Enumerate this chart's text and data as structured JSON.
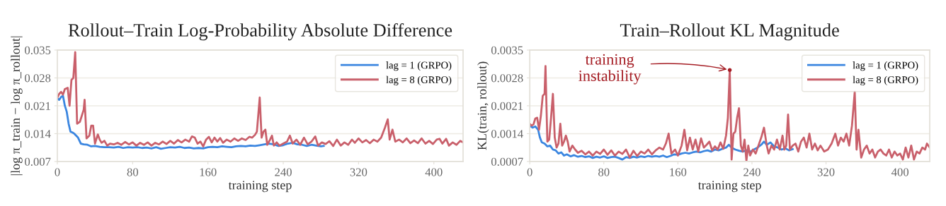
{
  "chart_data": [
    {
      "type": "line",
      "title": "Rollout–Train Log-Probability Absolute Difference",
      "xlabel": "training step",
      "ylabel": "|log π_train − log π_rollout|",
      "xlim": [
        0,
        431
      ],
      "xticks": [
        0,
        80,
        160,
        240,
        320,
        400
      ],
      "ylim": [
        0.007,
        0.035
      ],
      "yticks": [
        0.007,
        0.014,
        0.021,
        0.028,
        0.035
      ],
      "grid": "y",
      "legend": "top right",
      "series": [
        {
          "name": "lag = 1 (GRPO)",
          "color": "#3b86e0",
          "x": [
            0,
            2,
            4,
            6,
            8,
            10,
            12,
            14,
            16,
            18,
            20,
            22,
            25,
            28,
            32,
            36,
            40,
            45,
            50,
            55,
            60,
            65,
            70,
            75,
            80,
            85,
            90,
            95,
            100,
            105,
            110,
            115,
            120,
            125,
            130,
            135,
            140,
            145,
            150,
            155,
            160,
            165,
            170,
            175,
            180,
            185,
            190,
            195,
            200,
            205,
            210,
            215,
            220,
            225,
            230,
            235,
            240,
            245,
            250,
            255,
            260,
            265,
            270,
            275,
            280,
            283
          ],
          "values": [
            0.0228,
            0.0225,
            0.0232,
            0.0235,
            0.021,
            0.0195,
            0.0165,
            0.0145,
            0.0143,
            0.014,
            0.0135,
            0.013,
            0.0115,
            0.0113,
            0.0112,
            0.0108,
            0.0109,
            0.0107,
            0.0106,
            0.0106,
            0.0105,
            0.0107,
            0.0104,
            0.0106,
            0.0105,
            0.0106,
            0.0104,
            0.0105,
            0.0103,
            0.0106,
            0.0102,
            0.0104,
            0.0106,
            0.0105,
            0.0107,
            0.0104,
            0.0105,
            0.0103,
            0.0104,
            0.0103,
            0.0106,
            0.0107,
            0.0106,
            0.0108,
            0.0107,
            0.0106,
            0.0108,
            0.0109,
            0.0108,
            0.011,
            0.0109,
            0.0111,
            0.0113,
            0.0115,
            0.0113,
            0.0109,
            0.0111,
            0.0115,
            0.0117,
            0.0113,
            0.0112,
            0.0109,
            0.0112,
            0.011,
            0.0108,
            0.0109
          ]
        },
        {
          "name": "lag = 8 (GRPO)",
          "color": "#c9606b",
          "x": [
            0,
            2,
            4,
            6,
            8,
            11,
            13,
            15,
            17,
            19,
            21,
            24,
            28,
            29,
            31,
            34,
            36,
            38,
            40,
            43,
            45,
            47,
            50,
            53,
            56,
            60,
            64,
            68,
            72,
            76,
            80,
            84,
            88,
            92,
            96,
            100,
            104,
            108,
            112,
            116,
            120,
            124,
            128,
            132,
            136,
            140,
            143,
            146,
            149,
            152,
            155,
            158,
            161,
            164,
            167,
            170,
            173,
            176,
            180,
            184,
            188,
            192,
            196,
            200,
            204,
            207,
            210,
            212,
            215,
            217,
            219,
            221,
            223,
            226,
            228,
            230,
            233,
            236,
            240,
            244,
            247,
            250,
            254,
            258,
            262,
            266,
            270,
            274,
            277,
            281,
            285,
            289,
            293,
            297,
            301,
            305,
            309,
            313,
            316,
            320,
            324,
            328,
            332,
            336,
            340,
            344,
            348,
            351,
            353,
            356,
            359,
            363,
            367,
            371,
            375,
            379,
            383,
            387,
            391,
            395,
            399,
            403,
            406,
            409,
            413,
            416,
            420,
            424,
            428,
            431
          ],
          "values": [
            0.023,
            0.024,
            0.0245,
            0.0238,
            0.0252,
            0.0255,
            0.021,
            0.0275,
            0.028,
            0.0345,
            0.0165,
            0.017,
            0.02,
            0.0225,
            0.0128,
            0.0135,
            0.016,
            0.016,
            0.0115,
            0.0138,
            0.0125,
            0.0117,
            0.0122,
            0.011,
            0.0115,
            0.0113,
            0.0117,
            0.0112,
            0.0119,
            0.0113,
            0.0118,
            0.011,
            0.0117,
            0.0112,
            0.0118,
            0.011,
            0.0117,
            0.0113,
            0.012,
            0.0114,
            0.0122,
            0.0115,
            0.0124,
            0.0118,
            0.0125,
            0.012,
            0.0133,
            0.013,
            0.0115,
            0.012,
            0.0108,
            0.0125,
            0.0132,
            0.0118,
            0.013,
            0.012,
            0.0129,
            0.0117,
            0.0125,
            0.012,
            0.0128,
            0.0122,
            0.0128,
            0.0124,
            0.0132,
            0.013,
            0.0137,
            0.0145,
            0.0231,
            0.013,
            0.0145,
            0.015,
            0.0112,
            0.0125,
            0.0135,
            0.011,
            0.0118,
            0.011,
            0.0115,
            0.012,
            0.0135,
            0.0115,
            0.0125,
            0.0112,
            0.013,
            0.0113,
            0.012,
            0.0133,
            0.011,
            0.0118,
            0.0114,
            0.0121,
            0.0109,
            0.0125,
            0.011,
            0.0118,
            0.0112,
            0.0125,
            0.0117,
            0.0128,
            0.0118,
            0.0124,
            0.0116,
            0.0125,
            0.012,
            0.013,
            0.0155,
            0.0176,
            0.0125,
            0.015,
            0.012,
            0.0125,
            0.0118,
            0.0128,
            0.0116,
            0.0123,
            0.0116,
            0.0128,
            0.0115,
            0.0122,
            0.0114,
            0.0125,
            0.0127,
            0.0115,
            0.0127,
            0.011,
            0.0118,
            0.0112,
            0.0122,
            0.0118
          ]
        }
      ]
    },
    {
      "type": "line",
      "title": "Train–Rollout KL Magnitude",
      "xlabel": "training step",
      "ylabel": "KL(train, rollout)",
      "xlim": [
        0,
        432
      ],
      "xticks": [
        0,
        80,
        160,
        240,
        320,
        400
      ],
      "ylim": [
        0.0007,
        0.0035
      ],
      "yticks": [
        0.0007,
        0.0014,
        0.0021,
        0.0028,
        0.0035
      ],
      "grid": "y",
      "legend": "top right",
      "annotations": [
        {
          "text": "training\ninstability",
          "x": 216,
          "y": 0.003
        }
      ],
      "series": [
        {
          "name": "lag = 1 (GRPO)",
          "color": "#3b86e0",
          "x": [
            0,
            3,
            6,
            9,
            11,
            13,
            16,
            19,
            22,
            25,
            28,
            31,
            34,
            37,
            40,
            44,
            48,
            52,
            56,
            60,
            64,
            68,
            72,
            76,
            80,
            84,
            88,
            92,
            96,
            100,
            104,
            108,
            112,
            116,
            120,
            124,
            128,
            132,
            136,
            140,
            144,
            148,
            152,
            156,
            160,
            164,
            168,
            172,
            176,
            180,
            184,
            188,
            192,
            196,
            200,
            204,
            208,
            212,
            215,
            218,
            222,
            226,
            230,
            234,
            238,
            242,
            246,
            250,
            253,
            256,
            260,
            264,
            268,
            272,
            276,
            280,
            284
          ],
          "values": [
            0.0016,
            0.00155,
            0.00158,
            0.0015,
            0.0013,
            0.00118,
            0.00115,
            0.00108,
            0.0011,
            0.001,
            0.00098,
            0.0009,
            0.00093,
            0.00085,
            0.00088,
            0.00083,
            0.00086,
            0.00082,
            0.00084,
            0.00081,
            0.00083,
            0.00079,
            0.00082,
            0.0008,
            0.00083,
            0.00079,
            0.00081,
            0.00082,
            0.00079,
            0.00075,
            0.00081,
            0.00079,
            0.00082,
            0.0008,
            0.00083,
            0.00081,
            0.00084,
            0.00082,
            0.00084,
            0.00082,
            0.00085,
            0.00081,
            0.00084,
            0.00088,
            0.00087,
            0.0009,
            0.00092,
            0.0009,
            0.00093,
            0.00095,
            0.00093,
            0.00096,
            0.00098,
            0.00095,
            0.001,
            0.00098,
            0.00102,
            0.00105,
            0.00112,
            0.00105,
            0.001,
            0.00097,
            0.00095,
            0.00098,
            0.00094,
            0.001,
            0.00105,
            0.00112,
            0.0012,
            0.00112,
            0.00118,
            0.00108,
            0.00105,
            0.001,
            0.00103,
            0.00098,
            0.00101
          ]
        },
        {
          "name": "lag = 8 (GRPO)",
          "color": "#c9606b",
          "x": [
            0,
            2,
            4,
            6,
            8,
            10,
            12,
            14,
            16,
            17,
            19,
            21,
            23,
            25,
            27,
            29,
            31,
            33,
            35,
            37,
            39,
            41,
            43,
            46,
            49,
            52,
            56,
            60,
            64,
            68,
            72,
            76,
            80,
            84,
            88,
            92,
            96,
            100,
            104,
            108,
            112,
            116,
            120,
            124,
            128,
            132,
            136,
            140,
            144,
            147,
            150,
            153,
            157,
            160,
            164,
            167,
            170,
            173,
            176,
            179,
            182,
            185,
            188,
            191,
            194,
            197,
            200,
            203,
            206,
            209,
            212,
            214,
            216,
            218,
            220,
            222,
            224,
            226,
            228,
            230,
            232,
            234,
            236,
            238,
            241,
            244,
            247,
            250,
            253,
            256,
            258,
            261,
            264,
            267,
            270,
            273,
            275,
            277,
            279,
            281,
            284,
            287,
            290,
            293,
            296,
            299,
            302,
            305,
            308,
            311,
            314,
            318,
            322,
            326,
            330,
            333,
            336,
            339,
            342,
            345,
            348,
            351,
            353,
            355,
            358,
            361,
            364,
            367,
            370,
            373,
            376,
            379,
            382,
            385,
            388,
            391,
            394,
            397,
            400,
            403,
            406,
            409,
            412,
            415,
            418,
            421,
            424,
            427,
            429,
            432
          ],
          "values": [
            0.00165,
            0.0016,
            0.00163,
            0.00178,
            0.0018,
            0.0015,
            0.00185,
            0.00235,
            0.0024,
            0.0031,
            0.0012,
            0.00125,
            0.0018,
            0.0024,
            0.0013,
            0.00105,
            0.00115,
            0.00165,
            0.0011,
            0.0012,
            0.00135,
            0.0012,
            0.00095,
            0.0011,
            0.001,
            0.00092,
            0.00097,
            0.00088,
            0.00095,
            0.00085,
            0.00095,
            0.00089,
            0.001,
            0.00087,
            0.00098,
            0.00085,
            0.00095,
            0.00089,
            0.001,
            0.0008,
            0.00097,
            0.00084,
            0.00095,
            0.0009,
            0.001,
            0.00088,
            0.00098,
            0.00105,
            0.001,
            0.00115,
            0.0014,
            0.0009,
            0.001,
            0.00085,
            0.0011,
            0.0015,
            0.00098,
            0.0013,
            0.001,
            0.00125,
            0.00095,
            0.00128,
            0.00105,
            0.00112,
            0.0012,
            0.00098,
            0.00108,
            0.001,
            0.00118,
            0.00102,
            0.00135,
            0.0018,
            0.003,
            0.00075,
            0.0014,
            0.00145,
            0.0018,
            0.00204,
            0.0011,
            0.00095,
            0.00125,
            0.00072,
            0.0011,
            0.00085,
            0.001,
            0.0009,
            0.0011,
            0.0013,
            0.00155,
            0.0011,
            0.0009,
            0.0011,
            0.001,
            0.00125,
            0.001,
            0.00135,
            0.001,
            0.0011,
            0.00188,
            0.001,
            0.0011,
            0.00115,
            0.00095,
            0.0012,
            0.0013,
            0.00105,
            0.0014,
            0.001,
            0.00115,
            0.00098,
            0.0011,
            0.00095,
            0.001,
            0.00115,
            0.0014,
            0.0011,
            0.0013,
            0.0012,
            0.0014,
            0.0011,
            0.0016,
            0.00245,
            0.001,
            0.0015,
            0.0008,
            0.001,
            0.0011,
            0.0009,
            0.001,
            0.0008,
            0.00095,
            0.001,
            0.0009,
            0.00085,
            0.001,
            0.0008,
            0.00095,
            0.00085,
            0.0009,
            0.00075,
            0.00105,
            0.0008,
            0.0011,
            0.00075,
            0.00095,
            0.0009,
            0.00105,
            0.001,
            0.00115,
            0.00105
          ]
        }
      ]
    }
  ]
}
